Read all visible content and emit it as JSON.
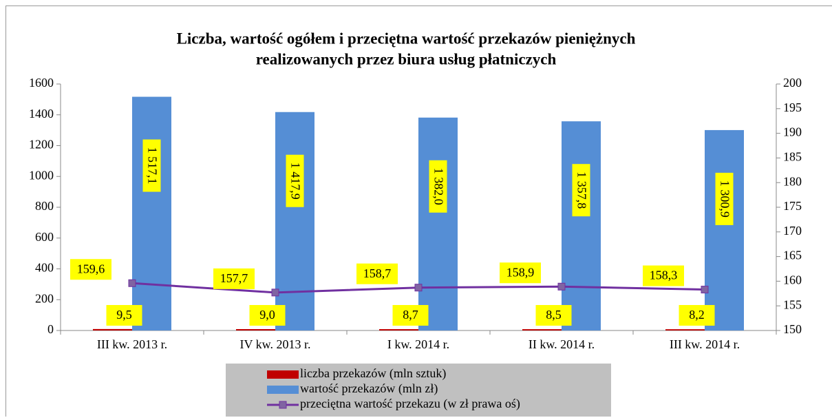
{
  "chart_data": {
    "type": "bar",
    "title": [
      "Liczba, wartość ogółem i przeciętna wartość przekazów pieniężnych",
      "realizowanych przez biura usług płatniczych"
    ],
    "categories": [
      "III kw. 2013 r.",
      "IV kw. 2013 r.",
      "I kw. 2014 r.",
      "II kw. 2014 r.",
      "III kw. 2014 r."
    ],
    "series": [
      {
        "name": "liczba przekazów (mln sztuk)",
        "color": "#c00000",
        "values": [
          9.5,
          9.0,
          8.7,
          8.5,
          8.2
        ],
        "value_labels": [
          "9,5",
          "9,0",
          "8,7",
          "8,5",
          "8,2"
        ]
      },
      {
        "name": "wartość przekazów (mln zł)",
        "color": "#558ed5",
        "values": [
          1517.1,
          1417.9,
          1382.0,
          1357.8,
          1300.9
        ],
        "value_labels": [
          "1 517,1",
          "1 417,9",
          "1 382,0",
          "1 357,8",
          "1 300,9"
        ]
      },
      {
        "name": "przeciętna wartość przekazu (w zł prawa oś)",
        "type": "line",
        "axis": "y2",
        "color": "#7030a0",
        "marker_color": "#8064a2",
        "values": [
          159.6,
          157.7,
          158.7,
          158.9,
          158.3
        ],
        "value_labels": [
          "159,6",
          "157,7",
          "158,7",
          "158,9",
          "158,3"
        ]
      }
    ],
    "ylim": [
      0,
      1600
    ],
    "yticks": [
      0,
      200,
      400,
      600,
      800,
      1000,
      1200,
      1400,
      1600
    ],
    "y2lim": [
      150,
      200
    ],
    "y2ticks": [
      150,
      155,
      160,
      165,
      170,
      175,
      180,
      185,
      190,
      195,
      200
    ],
    "label_background": "#ffff00",
    "legend": "bottom"
  }
}
